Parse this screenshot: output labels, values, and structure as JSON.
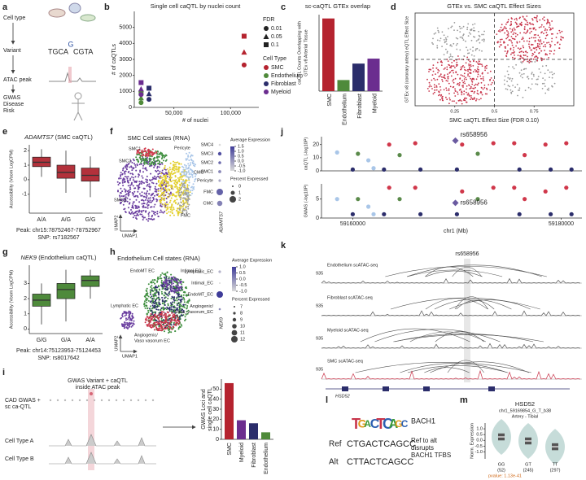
{
  "panels": {
    "a": {
      "label": "a",
      "steps": [
        "Cell type",
        "Variant",
        "ATAC peak"
      ],
      "outcome": [
        "GWAS",
        "Disease",
        "Risk"
      ],
      "seq": [
        "TGCA",
        "G",
        "CGTA"
      ]
    },
    "b": {
      "label": "b",
      "type": "scatter",
      "title": "Single cell caQTL by nuclei count",
      "x_label": "# of nuclei",
      "y_label": "# of caQTLs",
      "xlim": [
        15000,
        125000
      ],
      "ylim": [
        0,
        6000
      ],
      "xticks": [
        {
          "value": 50000,
          "label": "50,000"
        },
        {
          "value": 100000,
          "label": "100,000"
        }
      ],
      "yticks": [
        0,
        1000,
        2000,
        3000,
        4000,
        5000
      ],
      "fdr_title": "FDR",
      "fdr_levels": [
        0.01,
        0.05,
        0.1
      ],
      "legend_title": "Cell Type",
      "series": [
        {
          "name": "SMC",
          "color": "#b5232f",
          "x": [
            112000,
            112000,
            112000
          ],
          "y": [
            2650,
            3450,
            4450
          ],
          "fdr": [
            0.01,
            0.05,
            0.1
          ]
        },
        {
          "name": "Endothelium",
          "color": "#4f8a3a",
          "x": [
            21000,
            21000,
            21000
          ],
          "y": [
            300,
            600,
            900
          ],
          "fdr": [
            0.01,
            0.05,
            0.1
          ]
        },
        {
          "name": "Fibroblast",
          "color": "#2b2d6b",
          "x": [
            28000,
            28000,
            28000
          ],
          "y": [
            500,
            850,
            1200
          ],
          "fdr": [
            0.01,
            0.05,
            0.1
          ]
        },
        {
          "name": "Myeloid",
          "color": "#6b2d8f",
          "x": [
            21000,
            21000,
            21000
          ],
          "y": [
            800,
            1150,
            1550
          ],
          "fdr": [
            0.01,
            0.05,
            0.1
          ]
        }
      ]
    },
    "c": {
      "label": "c",
      "type": "bar",
      "title": "sc-caQTL GTEx overlap",
      "y_label": [
        "caQTL Counts Overlapping with",
        "GTEx v8 Arterial Tissue"
      ],
      "ylim": [
        0,
        2000
      ],
      "categories": [
        "SMC",
        "Endothelium",
        "Fibroblast",
        "Myeloid"
      ],
      "values": [
        1900,
        290,
        720,
        850
      ],
      "colors": [
        "#b5232f",
        "#4f8a3a",
        "#2b2d6b",
        "#6b2d8f"
      ]
    },
    "d": {
      "label": "d",
      "type": "scatter",
      "title": "GTEx vs. SMC caQTL Effect Sizes",
      "x_label": "SMC caQTL Effect Size (FDR 0.10)",
      "y_label": "GTEx v8 (coronary artery) eQTL Effect Size",
      "xlim": [
        0,
        1
      ],
      "ylim": [
        -1,
        1
      ],
      "xticks": [
        0.25,
        0.5,
        0.75
      ],
      "ref_lines": {
        "x": 0.5,
        "y": 0
      }
    },
    "e": {
      "label": "e",
      "type": "box",
      "gene": "ADAMTS7",
      "subtitle": " (SMC caQTL)",
      "y_label": "Accessibility (Voom LogCPM)",
      "ylim": [
        -2.3,
        2.4
      ],
      "yticks": [
        -1,
        0,
        1,
        2
      ],
      "categories": [
        "A/A",
        "A/G",
        "G/G"
      ],
      "color": "#b3313b",
      "boxes": [
        {
          "min": 0.2,
          "q1": 0.9,
          "median": 1.2,
          "q3": 1.55,
          "max": 2.1
        },
        {
          "min": -0.9,
          "q1": 0.1,
          "median": 0.5,
          "q3": 1.0,
          "max": 2.0
        },
        {
          "min": -1.2,
          "q1": -0.1,
          "median": 0.3,
          "q3": 0.8,
          "max": 1.6
        }
      ],
      "captions": [
        "Peak: chr15:78752467-78752967",
        "SNP: rs7182567"
      ]
    },
    "f": {
      "label": "f",
      "title": "SMC Cell states (RNA)",
      "umap_labels": [
        "SMC1",
        "Pericyte",
        "SMC2",
        "CMC",
        "SMC3",
        "FMC"
      ],
      "umap_axes": [
        "UMAP1",
        "UMAP2"
      ],
      "gene": "ADAMTS7",
      "rows": [
        {
          "name": "SMC4",
          "avg": -1,
          "pct": 0.2
        },
        {
          "name": "SMC3",
          "avg": 1.2,
          "pct": 0.8
        },
        {
          "name": "SMC2",
          "avg": 0.8,
          "pct": 0.5
        },
        {
          "name": "SMC1",
          "avg": 0.3,
          "pct": 0.6
        },
        {
          "name": "Pericyte",
          "avg": -0.2,
          "pct": 0.4
        },
        {
          "name": "FMC",
          "avg": 0.9,
          "pct": 2
        },
        {
          "name": "CMC",
          "avg": 0.4,
          "pct": 1.5
        }
      ],
      "avg_title": "Average Expression",
      "avg_ticks": [
        1.5,
        {
          "value": 1,
          "label": "1.0"
        },
        0.5,
        {
          "value": 0,
          "label": "0.0"
        },
        -0.5,
        {
          "value": -1,
          "label": "-1.0"
        }
      ],
      "pct_title": "Percent Expressed",
      "pct_ticks": [
        0,
        1,
        2
      ]
    },
    "g": {
      "label": "g",
      "type": "box",
      "gene": "NEK9",
      "subtitle": " (Endothelium caQTL)",
      "y_label": "Accessibility (Voom LogCPM)",
      "ylim": [
        -0.3,
        4.2
      ],
      "yticks": [
        0,
        1,
        2,
        3
      ],
      "categories": [
        "G/G",
        "G/A",
        "A/A"
      ],
      "color": "#4e8a3b",
      "boxes": [
        {
          "min": 0.3,
          "q1": 1.5,
          "median": 1.9,
          "q3": 2.3,
          "max": 3.0
        },
        {
          "min": 0.5,
          "q1": 2.0,
          "median": 2.6,
          "q3": 3.0,
          "max": 3.9
        },
        {
          "min": 2.0,
          "q1": 2.8,
          "median": 3.2,
          "q3": 3.5,
          "max": 3.9
        }
      ],
      "captions": [
        "Peak: chr14:75123953-75124453",
        "SNP: rs8017642"
      ]
    },
    "h": {
      "label": "h",
      "title": "Endothelium Cell states (RNA)",
      "umap_labels": [
        [
          "EndoMT EC"
        ],
        [
          "Intimal EC"
        ],
        [
          "Lymphatic EC"
        ],
        [
          "Angiogenic/",
          "Vaso vasorum EC"
        ]
      ],
      "umap_axes": [
        "UMAP1",
        "UMAP2"
      ],
      "gene": "NEK9",
      "rows": [
        {
          "name": [
            "Lymphatic_EC"
          ],
          "avg": -0.5,
          "pct": 8
        },
        {
          "name": [
            "Intimal_EC"
          ],
          "avg": -1,
          "pct": 7
        },
        {
          "name": [
            "EndoMT_EC"
          ],
          "avg": 1,
          "pct": 12
        },
        {
          "name": [
            "Angiogenic/",
            "Vasa_vasorum_EC"
          ],
          "avg": 0,
          "pct": 7.5
        }
      ],
      "avg_title": "Average Expression",
      "avg_ticks": [
        {
          "value": 1,
          "label": "1.0"
        },
        0.5,
        {
          "value": 0,
          "label": "0.0"
        },
        -0.5,
        {
          "value": -1,
          "label": "-1.0"
        }
      ],
      "pct_title": "Percent Expressed",
      "pct_ticks": [
        7,
        8,
        9,
        10,
        11,
        12
      ]
    },
    "i": {
      "label": "i",
      "diagram_title": [
        "GWAS Variant + caQTL",
        "inside ATAC peak"
      ],
      "source": [
        "CAD GWAS +",
        "sc ca-QTL"
      ],
      "tracks": [
        "Cell Type A",
        "Cell Type B"
      ],
      "chart": {
        "type": "bar",
        "y_label": [
          "GWAS Loci and",
          "single cell caQTL"
        ],
        "ylim": [
          0,
          60
        ],
        "yticks": [
          0,
          10,
          20,
          30,
          40,
          50
        ],
        "categories": [
          "SMC",
          "Myeloid",
          "Fibroblast",
          "Endothelium"
        ],
        "values": [
          56,
          19,
          16,
          7
        ],
        "colors": [
          "#b5232f",
          "#6b2d8f",
          "#2b2d6b",
          "#4f8a3a"
        ]
      }
    },
    "j": {
      "label": "j",
      "xlim": [
        59157000,
        59182000
      ],
      "xticks": [
        59160000,
        59180000
      ],
      "x_label": "chr1 (Mb)",
      "lead_label": "rs658956",
      "caqtl": {
        "y_label": "caQTL (-log10P)",
        "ylim": [
          0,
          26
        ],
        "yticks": [
          0,
          10,
          20
        ],
        "series": [
          {
            "color": "#d0374a",
            "x": [
              59163500,
              59166000,
              59170500,
              59173500,
              59175500,
              59176500,
              59178500,
              59180500
            ],
            "y": [
              20,
              21,
              20,
              21,
              21,
              12,
              20,
              21
            ]
          },
          {
            "color": "#a9c6e8",
            "x": [
              59158500,
              59161500,
              59162000
            ],
            "y": [
              14,
              8,
              2
            ]
          },
          {
            "color": "#5a8a4a",
            "x": [
              59160500,
              59164500,
              59172000
            ],
            "y": [
              13,
              12,
              13
            ]
          },
          {
            "color": "#2b2d6b",
            "x": [
              59160000,
              59163000,
              59166500,
              59170000,
              59176000,
              59179000,
              59181000
            ],
            "y": [
              1,
              1,
              1,
              1,
              1,
              1,
              1
            ]
          }
        ],
        "lead": {
          "x": 59169854,
          "y": 23
        }
      },
      "gwas": {
        "y_label": "GWAS (-log10P)",
        "ylim": [
          0,
          9
        ],
        "yticks": [
          0,
          5
        ],
        "series": [
          {
            "color": "#d0374a",
            "x": [
              59163500,
              59166000,
              59170500,
              59173500,
              59175500,
              59176500,
              59178500,
              59180500
            ],
            "y": [
              8,
              8,
              7,
              8,
              8,
              5,
              7,
              8
            ]
          },
          {
            "color": "#a9c6e8",
            "x": [
              59158500,
              59161500,
              59162000
            ],
            "y": [
              5,
              3,
              1
            ]
          },
          {
            "color": "#5a8a4a",
            "x": [
              59160500,
              59164500,
              59172000
            ],
            "y": [
              5,
              5,
              5
            ]
          },
          {
            "color": "#2b2d6b",
            "x": [
              59160000,
              59163000,
              59166500,
              59170000,
              59176000,
              59179000,
              59181000
            ],
            "y": [
              1,
              1,
              1,
              1,
              1,
              1,
              1
            ]
          }
        ],
        "lead": {
          "x": 59169854,
          "y": 4
        }
      }
    },
    "k": {
      "label": "k",
      "snp": "rs658956",
      "gene": "HSD52",
      "tracks": [
        {
          "name": "Endothelium scATAC-seq",
          "scale": 935
        },
        {
          "name": "Fibroblast scATAC-seq",
          "scale": 935
        },
        {
          "name": "Myeloid scATAC-seq",
          "scale": 935
        },
        {
          "name": "SMC scATAC-seq",
          "scale": 935
        }
      ]
    },
    "l": {
      "label": "l",
      "motif": [
        "T",
        "G",
        "A",
        "C",
        "T",
        "C",
        "A",
        "G",
        "C"
      ],
      "ref_label": "Ref",
      "ref_seq": "CTGACTCAGCC",
      "alt_label": "Alt",
      "alt_seq": "CTTACTCAGCC",
      "tf": "BACH1",
      "note": [
        "Ref to alt",
        "disrupts",
        "BACH1 TFBS"
      ]
    },
    "m": {
      "label": "m",
      "title": "HSD52",
      "subtitle": "chr1_59169854_G_T_b38",
      "tissue": "Artery - Tibial",
      "y_label": "Norm. Expression",
      "ylim": [
        -1.6,
        1.5
      ],
      "yticks": [
        {
          "value": 1,
          "label": "1.0"
        },
        0.5,
        {
          "value": 0,
          "label": "0.0"
        },
        -0.5,
        {
          "value": -1,
          "label": "-1.0"
        }
      ],
      "categories": [
        "GG",
        "GT",
        "TT"
      ],
      "counts": [
        "(52)",
        "(245)",
        "(297)"
      ],
      "boxes": [
        {
          "q1": 0.0,
          "median": 0.3,
          "q3": 0.6
        },
        {
          "q1": -0.35,
          "median": -0.05,
          "q3": 0.25
        },
        {
          "q1": -0.85,
          "median": -0.55,
          "q3": -0.25
        }
      ],
      "pvalue": "pvalue: 1.13e-41"
    }
  }
}
